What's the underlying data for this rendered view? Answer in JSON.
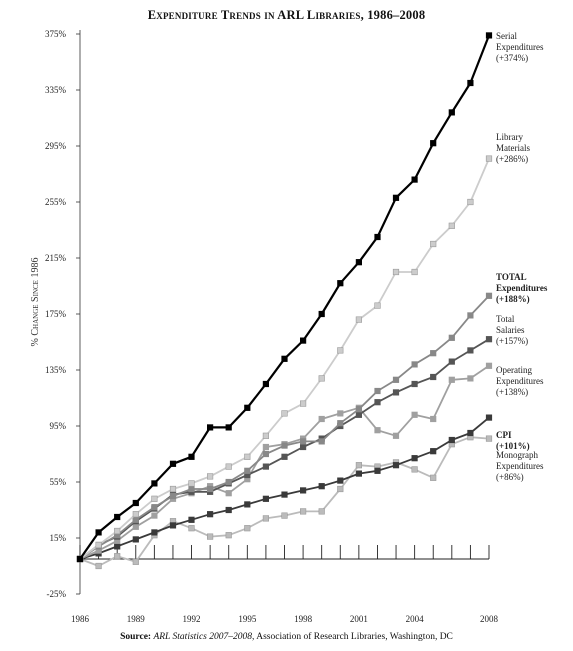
{
  "chart_data": {
    "type": "line",
    "title": "Expenditure Trends in ARL Libraries, 1986–2008",
    "ylabel": "% Change Since 1986",
    "xlabel": "",
    "x": [
      1986,
      1987,
      1988,
      1989,
      1990,
      1991,
      1992,
      1993,
      1994,
      1995,
      1996,
      1997,
      1998,
      1999,
      2000,
      2001,
      2002,
      2003,
      2004,
      2005,
      2006,
      2007,
      2008
    ],
    "x_ticks": [
      "1986",
      "1989",
      "1992",
      "1995",
      "1998",
      "2001",
      "2004",
      "2008"
    ],
    "x_tick_values": [
      1986,
      1989,
      1992,
      1995,
      1998,
      2001,
      2004,
      2008
    ],
    "y_ticks": [
      "375%",
      "335%",
      "295%",
      "255%",
      "215%",
      "175%",
      "135%",
      "95%",
      "55%",
      "15%",
      "-25%"
    ],
    "y_tick_values": [
      375,
      335,
      295,
      255,
      215,
      175,
      135,
      95,
      55,
      15,
      -25
    ],
    "ylim": [
      -25,
      375
    ],
    "xlim": [
      1986,
      2008
    ],
    "grid": false,
    "series": [
      {
        "key": "serial",
        "label_lines": [
          "Serial",
          "Expenditures",
          "(+374%)"
        ],
        "bold": false,
        "color": "#000000",
        "values": [
          0,
          19,
          30,
          40,
          54,
          68,
          73,
          94,
          94,
          108,
          125,
          143,
          156,
          175,
          197,
          212,
          230,
          258,
          271,
          297,
          319,
          340,
          374
        ]
      },
      {
        "key": "library",
        "label_lines": [
          "Library",
          "Materials",
          "(+286%)"
        ],
        "bold": false,
        "color": "#cccccc",
        "values": [
          0,
          10,
          20,
          32,
          43,
          50,
          54,
          59,
          66,
          73,
          88,
          104,
          111,
          129,
          149,
          171,
          181,
          205,
          205,
          225,
          238,
          255,
          286
        ]
      },
      {
        "key": "total",
        "label_lines": [
          "TOTAL",
          "Expenditures",
          "(+188%)"
        ],
        "bold": true,
        "color": "#888888",
        "values": [
          0,
          9,
          17,
          28,
          37,
          45,
          50,
          50,
          55,
          63,
          75,
          81,
          84,
          84,
          97,
          107,
          120,
          128,
          139,
          147,
          158,
          174,
          188
        ]
      },
      {
        "key": "salaries",
        "label_lines": [
          "Total",
          "Salaries",
          "(+157%)"
        ],
        "bold": false,
        "color": "#555555",
        "values": [
          0,
          10,
          16,
          27,
          36,
          46,
          48,
          48,
          54,
          60,
          66,
          73,
          80,
          86,
          95,
          103,
          112,
          119,
          125,
          130,
          141,
          149,
          157
        ]
      },
      {
        "key": "operating",
        "label_lines": [
          "Operating",
          "Expenditures",
          "(+138%)"
        ],
        "bold": false,
        "color": "#a0a0a0",
        "values": [
          0,
          6,
          13,
          23,
          31,
          43,
          47,
          52,
          47,
          57,
          80,
          82,
          86,
          100,
          104,
          108,
          92,
          88,
          103,
          100,
          128,
          129,
          138
        ]
      },
      {
        "key": "cpi",
        "label_lines": [
          "CPI",
          "(+101%)"
        ],
        "bold": true,
        "color": "#3a3a3a",
        "values": [
          0,
          4,
          9,
          14,
          19,
          24,
          28,
          32,
          35,
          39,
          43,
          46,
          49,
          52,
          56,
          61,
          63,
          67,
          72,
          77,
          85,
          90,
          101
        ]
      },
      {
        "key": "monograph",
        "label_lines": [
          "Monograph",
          "Expenditures",
          "(+86%)"
        ],
        "bold": false,
        "color": "#bbbbbb",
        "values": [
          0,
          -5,
          2,
          -2,
          17,
          27,
          22,
          16,
          17,
          22,
          29,
          31,
          34,
          34,
          50,
          67,
          66,
          69,
          64,
          58,
          82,
          87,
          86
        ]
      }
    ]
  },
  "source": {
    "lead": "Source:",
    "publication": "ARL Statistics 2007–2008,",
    "rest": "Association of Research Libraries, Washington, DC"
  }
}
